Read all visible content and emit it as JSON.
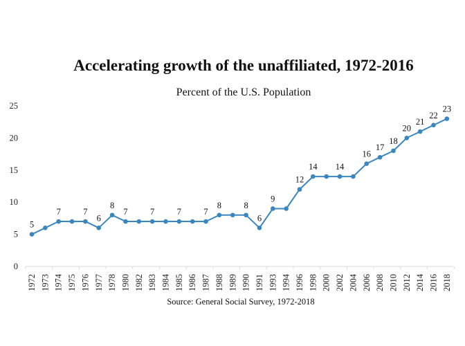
{
  "chart_data": {
    "type": "line",
    "title": "Accelerating growth of the unaffiliated, 1972-2016",
    "subtitle": "Percent of the U.S. Population",
    "source": "Source: General Social Survey, 1972-2018",
    "xlabel": "",
    "ylabel": "",
    "ylim": [
      0,
      25
    ],
    "yticks": [
      0,
      5,
      10,
      15,
      20,
      25
    ],
    "grid": false,
    "legend": "none",
    "line_color": "#3a87bf",
    "categories": [
      "1972",
      "1973",
      "1974",
      "1975",
      "1976",
      "1977",
      "1978",
      "1980",
      "1982",
      "1983",
      "1984",
      "1985",
      "1986",
      "1987",
      "1988",
      "1989",
      "1990",
      "1991",
      "1993",
      "1994",
      "1996",
      "1998",
      "2000",
      "2002",
      "2004",
      "2006",
      "2008",
      "2010",
      "2012",
      "2014",
      "2016",
      "2018"
    ],
    "series": [
      {
        "name": "Unaffiliated",
        "values": [
          5,
          6,
          7,
          7,
          7,
          6,
          8,
          7,
          7,
          7,
          7,
          7,
          7,
          7,
          8,
          8,
          8,
          6,
          9,
          9,
          12,
          14,
          14,
          14,
          14,
          16,
          17,
          18,
          20,
          21,
          22,
          23
        ]
      }
    ],
    "data_labels": [
      {
        "index": 0,
        "text": "5"
      },
      {
        "index": 2,
        "text": "7"
      },
      {
        "index": 4,
        "text": "7"
      },
      {
        "index": 5,
        "text": "6"
      },
      {
        "index": 6,
        "text": "8"
      },
      {
        "index": 7,
        "text": "7"
      },
      {
        "index": 9,
        "text": "7"
      },
      {
        "index": 11,
        "text": "7"
      },
      {
        "index": 13,
        "text": "7"
      },
      {
        "index": 14,
        "text": "8"
      },
      {
        "index": 16,
        "text": "8"
      },
      {
        "index": 17,
        "text": "6"
      },
      {
        "index": 18,
        "text": "9"
      },
      {
        "index": 20,
        "text": "12"
      },
      {
        "index": 21,
        "text": "14"
      },
      {
        "index": 23,
        "text": "14"
      },
      {
        "index": 25,
        "text": "16"
      },
      {
        "index": 26,
        "text": "17"
      },
      {
        "index": 27,
        "text": "18"
      },
      {
        "index": 28,
        "text": "20"
      },
      {
        "index": 29,
        "text": "21"
      },
      {
        "index": 30,
        "text": "22"
      },
      {
        "index": 31,
        "text": "23"
      }
    ]
  }
}
